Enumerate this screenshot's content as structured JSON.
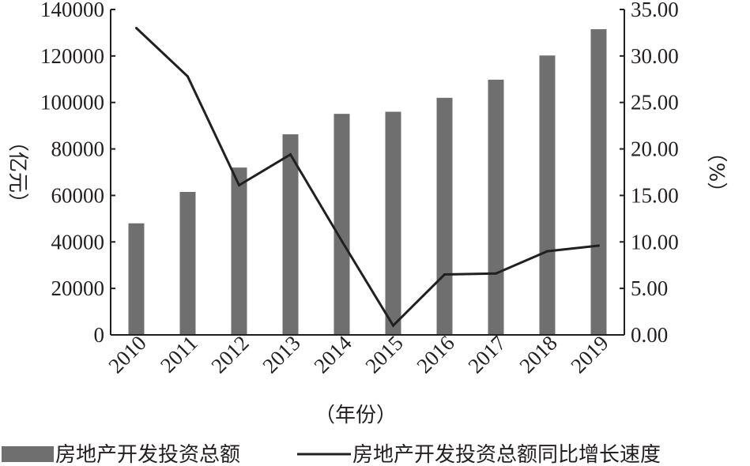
{
  "chart_data": {
    "type": "bar",
    "categories": [
      "2010",
      "2011",
      "2012",
      "2013",
      "2014",
      "2015",
      "2016",
      "2017",
      "2018",
      "2019"
    ],
    "series": [
      {
        "name": "房地产开发投资总额",
        "type": "bar",
        "axis": "left",
        "values": [
          48000,
          61500,
          72000,
          86300,
          95100,
          96000,
          102000,
          109800,
          120200,
          131500
        ]
      },
      {
        "name": "房地产开发投资总额同比增长速度",
        "type": "line",
        "axis": "right",
        "values": [
          33.0,
          27.8,
          16.1,
          19.4,
          10.1,
          1.0,
          6.5,
          6.6,
          9.0,
          9.6
        ]
      }
    ],
    "xlabel": "（年份）",
    "ylabel": "（亿元）",
    "ylabel_right": "（%）",
    "ylim": [
      0,
      140000
    ],
    "ylim_right": [
      0,
      35
    ],
    "yticks": [
      "0",
      "20000",
      "40000",
      "60000",
      "80000",
      "100000",
      "120000",
      "140000"
    ],
    "yticks_right": [
      "0.00",
      "5.00",
      "10.00",
      "15.00",
      "20.00",
      "25.00",
      "30.00",
      "35.00"
    ],
    "legend_position": "bottom",
    "grid": false,
    "colors": {
      "bar": "#6f6f6f",
      "line": "#231f20",
      "axis": "#231f20"
    }
  }
}
